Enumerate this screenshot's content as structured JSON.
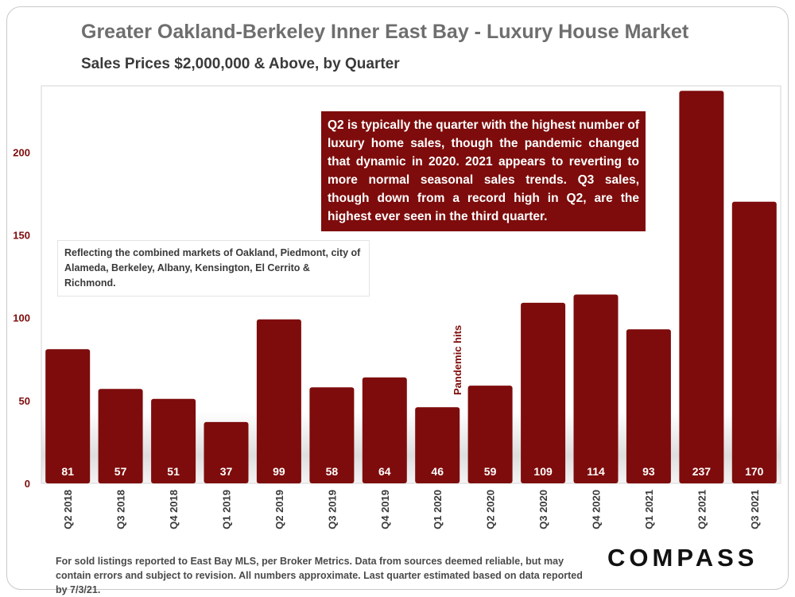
{
  "header": {
    "title": "Greater Oakland-Berkeley Inner East Bay - Luxury House Market",
    "subtitle": "Sales Prices $2,000,000 & Above, by Quarter"
  },
  "annotations": {
    "main": "Q2 is typically the quarter with the highest number of luxury home sales, though the pandemic changed that dynamic in 2020.  2021 appears to reverting to more normal seasonal sales trends. Q3 sales, though down from a record high in Q2, are the highest ever seen in the third quarter.",
    "markets": "Reflecting the combined markets of Oakland, Piedmont, city of Alameda, Berkeley, Albany, Kensington, El Cerrito & Richmond.",
    "pandemic": "Pandemic hits"
  },
  "footer": {
    "note": "For sold listings reported to East Bay MLS, per Broker Metrics. Data from sources deemed reliable, but may contain errors and subject to revision. All numbers approximate. Last quarter estimated based on data reported by 7/3/21."
  },
  "logo": {
    "text": "COMPASS"
  },
  "colors": {
    "bar": "#7e0c0c",
    "axis_text": "#7e0c0c",
    "title": "#6e6e6e"
  },
  "chart_data": {
    "type": "bar",
    "title": "Greater Oakland-Berkeley Inner East Bay - Luxury House Market",
    "subtitle": "Sales Prices $2,000,000 & Above, by Quarter",
    "xlabel": "",
    "ylabel": "",
    "categories": [
      "Q2 2018",
      "Q3 2018",
      "Q4 2018",
      "Q1 2019",
      "Q2 2019",
      "Q3 2019",
      "Q4 2019",
      "Q1 2020",
      "Q2 2020",
      "Q3 2020",
      "Q4 2020",
      "Q1 2021",
      "Q2 2021",
      "Q3 2021"
    ],
    "values": [
      81,
      57,
      51,
      37,
      99,
      58,
      64,
      46,
      59,
      109,
      114,
      93,
      237,
      170
    ],
    "ylim": [
      0,
      240
    ],
    "yticks": [
      0,
      50,
      100,
      150,
      200
    ],
    "grid": false,
    "legend": "none"
  }
}
